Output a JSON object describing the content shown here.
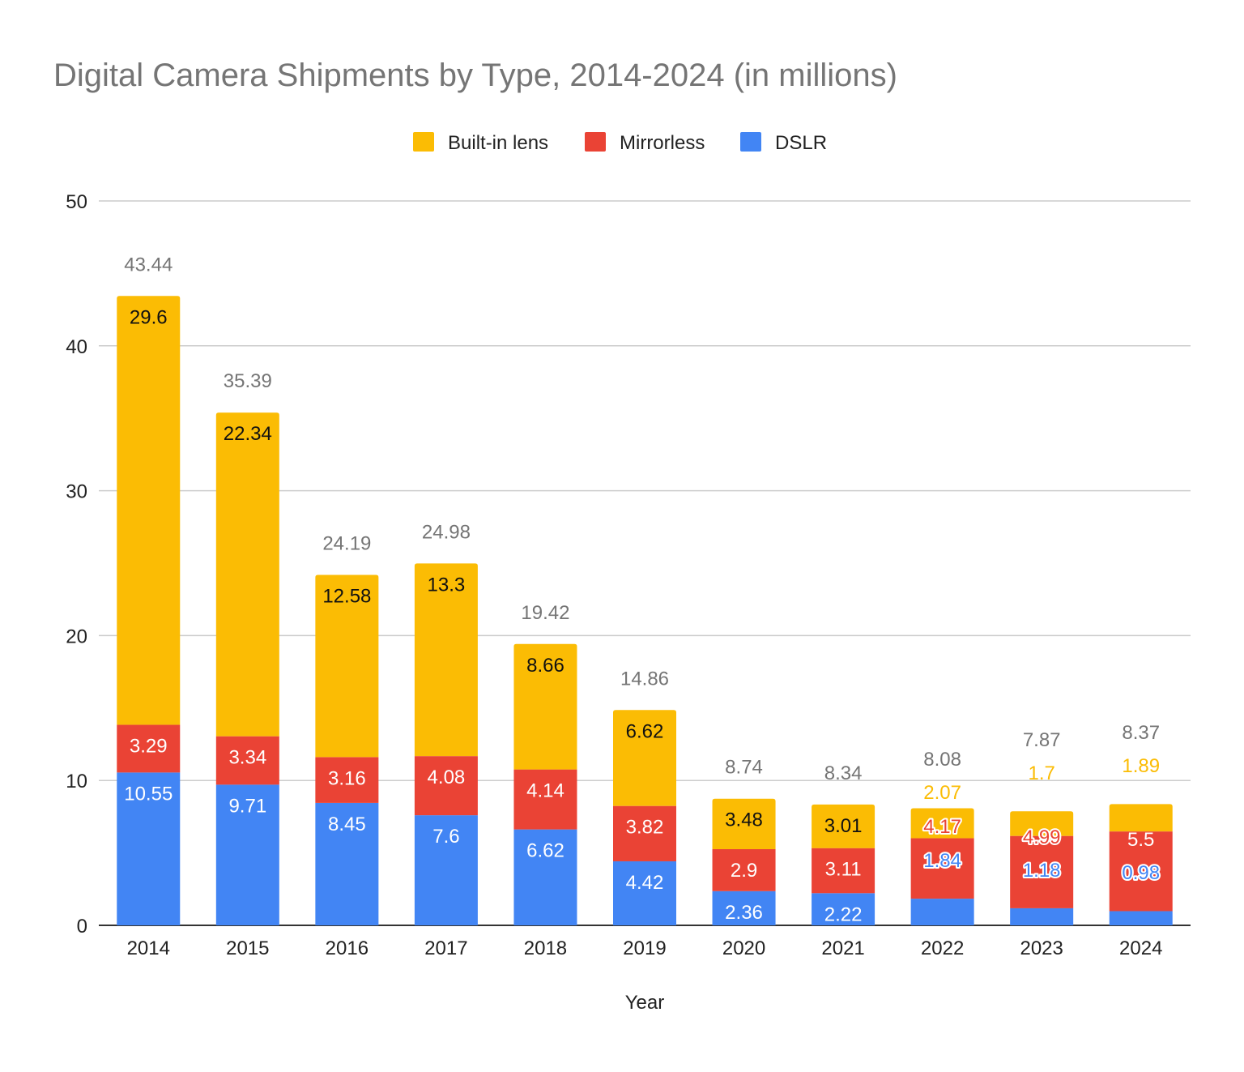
{
  "chart_data": {
    "type": "bar",
    "stacked": true,
    "title": "Digital Camera Shipments by Type, 2014-2024 (in millions)",
    "xlabel": "Year",
    "ylabel": "",
    "ylim": [
      0,
      50
    ],
    "yticks": [
      0,
      10,
      20,
      30,
      40,
      50
    ],
    "grid": true,
    "legend_position": "top",
    "categories": [
      "2014",
      "2015",
      "2016",
      "2017",
      "2018",
      "2019",
      "2020",
      "2021",
      "2022",
      "2023",
      "2024"
    ],
    "series": [
      {
        "name": "DSLR",
        "color": "#4285F4",
        "values": [
          10.55,
          9.71,
          8.45,
          7.6,
          6.62,
          4.42,
          2.36,
          2.22,
          1.84,
          1.18,
          0.98
        ]
      },
      {
        "name": "Mirrorless",
        "color": "#EA4335",
        "values": [
          3.29,
          3.34,
          3.16,
          4.08,
          4.14,
          3.82,
          2.9,
          3.11,
          4.17,
          4.99,
          5.5
        ]
      },
      {
        "name": "Built-in lens",
        "color": "#FBBC04",
        "values": [
          29.6,
          22.34,
          12.58,
          13.3,
          8.66,
          6.62,
          3.48,
          3.01,
          2.07,
          1.7,
          1.89
        ]
      }
    ],
    "totals": [
      43.44,
      35.39,
      24.19,
      24.98,
      19.42,
      14.86,
      8.74,
      8.34,
      8.08,
      7.87,
      8.37
    ],
    "legend_order": [
      "Built-in lens",
      "Mirrorless",
      "DSLR"
    ]
  }
}
